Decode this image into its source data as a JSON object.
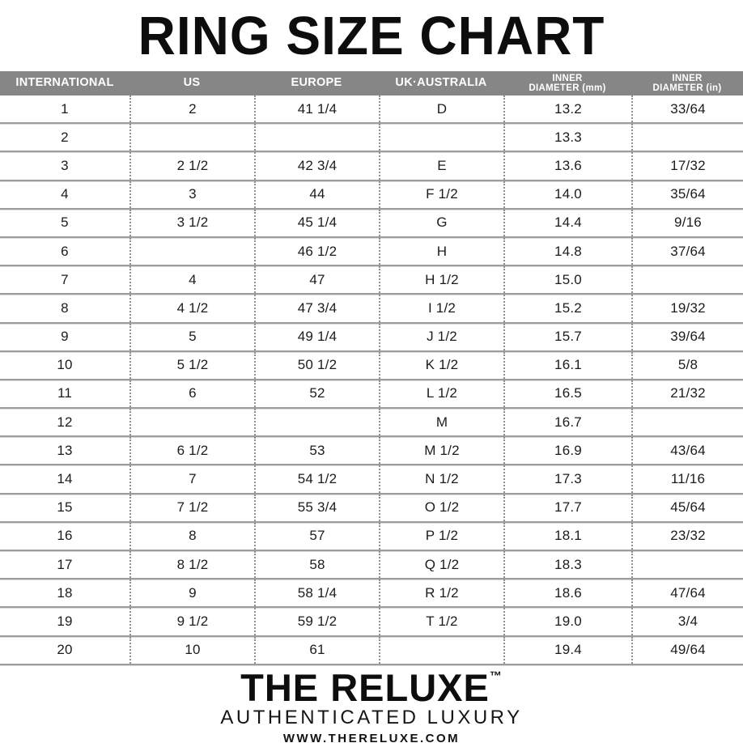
{
  "title": "RING SIZE CHART",
  "colors": {
    "header_bg": "#868686",
    "header_text": "#ffffff",
    "row_line": "#9c9c9c",
    "dot_color": "#8f8f8f",
    "text_color": "#1c1c1c"
  },
  "table": {
    "headers": [
      {
        "lines": [
          "INTERNATIONAL"
        ]
      },
      {
        "lines": [
          "US"
        ]
      },
      {
        "lines": [
          "EUROPE"
        ]
      },
      {
        "lines": [
          "UK·AUSTRALIA"
        ]
      },
      {
        "lines": [
          "INNER",
          "DIAMETER (mm)"
        ]
      },
      {
        "lines": [
          "INNER",
          "DIAMETER (in)"
        ]
      }
    ],
    "rows": [
      [
        "1",
        "2",
        "41 1/4",
        "D",
        "13.2",
        "33/64"
      ],
      [
        "2",
        "",
        "",
        "",
        "13.3",
        ""
      ],
      [
        "3",
        "2 1/2",
        "42 3/4",
        "E",
        "13.6",
        "17/32"
      ],
      [
        "4",
        "3",
        "44",
        "F 1/2",
        "14.0",
        "35/64"
      ],
      [
        "5",
        "3 1/2",
        "45 1/4",
        "G",
        "14.4",
        "9/16"
      ],
      [
        "6",
        "",
        "46 1/2",
        "H",
        "14.8",
        "37/64"
      ],
      [
        "7",
        "4",
        "47",
        "H 1/2",
        "15.0",
        ""
      ],
      [
        "8",
        "4 1/2",
        "47 3/4",
        "I 1/2",
        "15.2",
        "19/32"
      ],
      [
        "9",
        "5",
        "49 1/4",
        "J 1/2",
        "15.7",
        "39/64"
      ],
      [
        "10",
        "5 1/2",
        "50 1/2",
        "K 1/2",
        "16.1",
        "5/8"
      ],
      [
        "11",
        "6",
        "52",
        "L 1/2",
        "16.5",
        "21/32"
      ],
      [
        "12",
        "",
        "",
        "M",
        "16.7",
        ""
      ],
      [
        "13",
        "6 1/2",
        "53",
        "M 1/2",
        "16.9",
        "43/64"
      ],
      [
        "14",
        "7",
        "54 1/2",
        "N 1/2",
        "17.3",
        "11/16"
      ],
      [
        "15",
        "7 1/2",
        "55 3/4",
        "O 1/2",
        "17.7",
        "45/64"
      ],
      [
        "16",
        "8",
        "57",
        "P 1/2",
        "18.1",
        "23/32"
      ],
      [
        "17",
        "8 1/2",
        "58",
        "Q 1/2",
        "18.3",
        ""
      ],
      [
        "18",
        "9",
        "58 1/4",
        "R 1/2",
        "18.6",
        "47/64"
      ],
      [
        "19",
        "9 1/2",
        "59 1/2",
        "T 1/2",
        "19.0",
        "3/4"
      ],
      [
        "20",
        "10",
        "61",
        "",
        "19.4",
        "49/64"
      ]
    ]
  },
  "footer": {
    "brand": "THE RELUXE",
    "trademark": "™",
    "tagline": "AUTHENTICATED LUXURY",
    "website": "WWW.THERELUXE.COM"
  }
}
